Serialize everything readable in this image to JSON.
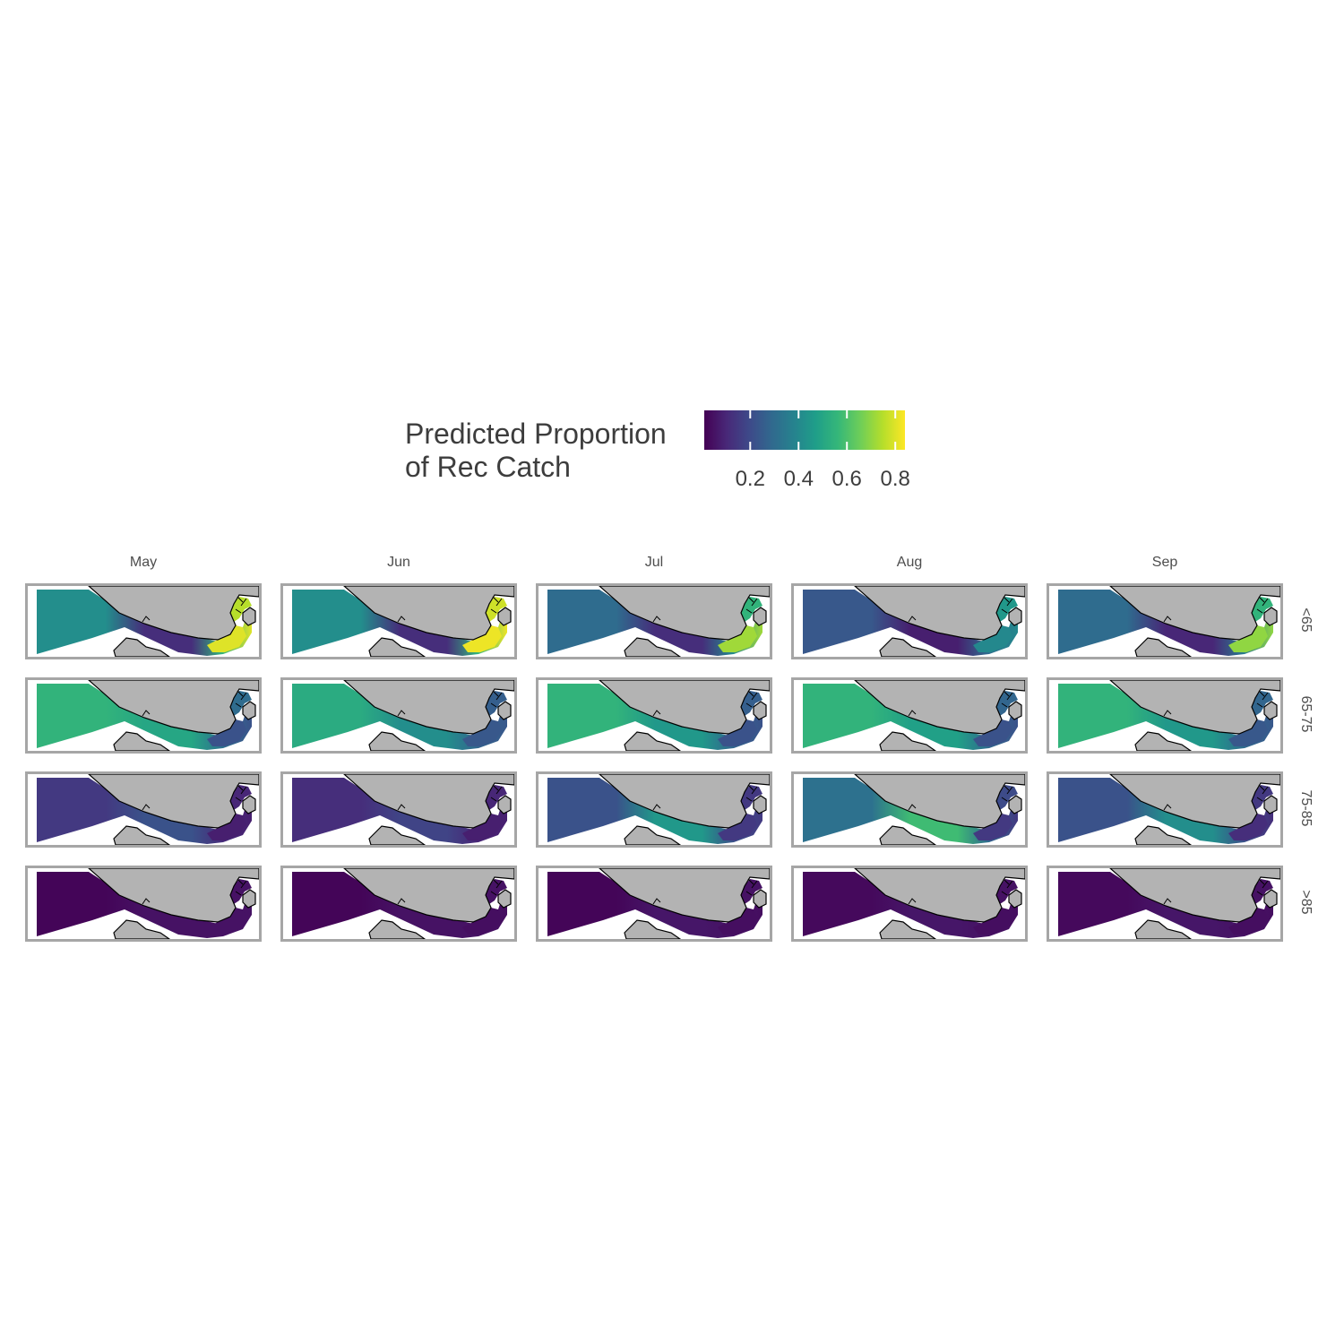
{
  "legend": {
    "title_line1": "Predicted Proportion",
    "title_line2": "of Rec Catch",
    "ticks": [
      "0.2",
      "0.4",
      "0.6",
      "0.8"
    ],
    "tick_values": [
      0.2,
      0.4,
      0.6,
      0.8
    ],
    "range": [
      0.01,
      0.84
    ],
    "palette": "viridis"
  },
  "chart_data": {
    "type": "heatmap",
    "columns": [
      "May",
      "Jun",
      "Jul",
      "Aug",
      "Sep"
    ],
    "rows": [
      "<65",
      "65-75",
      "75-85",
      ">85"
    ],
    "regions": [
      "west",
      "mid",
      "east",
      "bay",
      "inlets"
    ],
    "values": {
      "<65": {
        "May": {
          "west": 0.42,
          "mid": 0.12,
          "east": 0.55,
          "bay": 0.8,
          "inlets": 0.75
        },
        "Jun": {
          "west": 0.42,
          "mid": 0.12,
          "east": 0.55,
          "bay": 0.82,
          "inlets": 0.78
        },
        "Jul": {
          "west": 0.3,
          "mid": 0.12,
          "east": 0.4,
          "bay": 0.72,
          "inlets": 0.55
        },
        "Aug": {
          "west": 0.24,
          "mid": 0.08,
          "east": 0.3,
          "bay": 0.4,
          "inlets": 0.45
        },
        "Sep": {
          "west": 0.3,
          "mid": 0.1,
          "east": 0.35,
          "bay": 0.7,
          "inlets": 0.55
        }
      },
      "65-75": {
        "May": {
          "west": 0.55,
          "mid": 0.5,
          "east": 0.32,
          "bay": 0.22,
          "inlets": 0.3
        },
        "Jun": {
          "west": 0.52,
          "mid": 0.42,
          "east": 0.28,
          "bay": 0.24,
          "inlets": 0.26
        },
        "Jul": {
          "west": 0.55,
          "mid": 0.45,
          "east": 0.28,
          "bay": 0.22,
          "inlets": 0.26
        },
        "Aug": {
          "west": 0.55,
          "mid": 0.48,
          "east": 0.3,
          "bay": 0.22,
          "inlets": 0.28
        },
        "Sep": {
          "west": 0.55,
          "mid": 0.45,
          "east": 0.3,
          "bay": 0.24,
          "inlets": 0.28
        }
      },
      "75-85": {
        "May": {
          "west": 0.15,
          "mid": 0.22,
          "east": 0.12,
          "bay": 0.08,
          "inlets": 0.1
        },
        "Jun": {
          "west": 0.12,
          "mid": 0.18,
          "east": 0.1,
          "bay": 0.08,
          "inlets": 0.1
        },
        "Jul": {
          "west": 0.22,
          "mid": 0.45,
          "east": 0.22,
          "bay": 0.15,
          "inlets": 0.15
        },
        "Aug": {
          "west": 0.32,
          "mid": 0.58,
          "east": 0.3,
          "bay": 0.15,
          "inlets": 0.2
        },
        "Sep": {
          "west": 0.22,
          "mid": 0.42,
          "east": 0.22,
          "bay": 0.12,
          "inlets": 0.15
        }
      },
      ">85": {
        "May": {
          "west": 0.02,
          "mid": 0.05,
          "east": 0.05,
          "bay": 0.05,
          "inlets": 0.05
        },
        "Jun": {
          "west": 0.02,
          "mid": 0.05,
          "east": 0.05,
          "bay": 0.04,
          "inlets": 0.05
        },
        "Jul": {
          "west": 0.02,
          "mid": 0.06,
          "east": 0.05,
          "bay": 0.04,
          "inlets": 0.05
        },
        "Aug": {
          "west": 0.03,
          "mid": 0.06,
          "east": 0.05,
          "bay": 0.04,
          "inlets": 0.05
        },
        "Sep": {
          "west": 0.03,
          "mid": 0.06,
          "east": 0.05,
          "bay": 0.04,
          "inlets": 0.05
        }
      }
    }
  },
  "colors": {
    "land": "#b3b3b3",
    "coast": "#000000",
    "panel_border": "#a6a6a6",
    "viridis": [
      "#440154",
      "#482878",
      "#3e4989",
      "#31688e",
      "#26828e",
      "#1f9e89",
      "#35b779",
      "#6ece58",
      "#b5de2b",
      "#fde725"
    ]
  }
}
